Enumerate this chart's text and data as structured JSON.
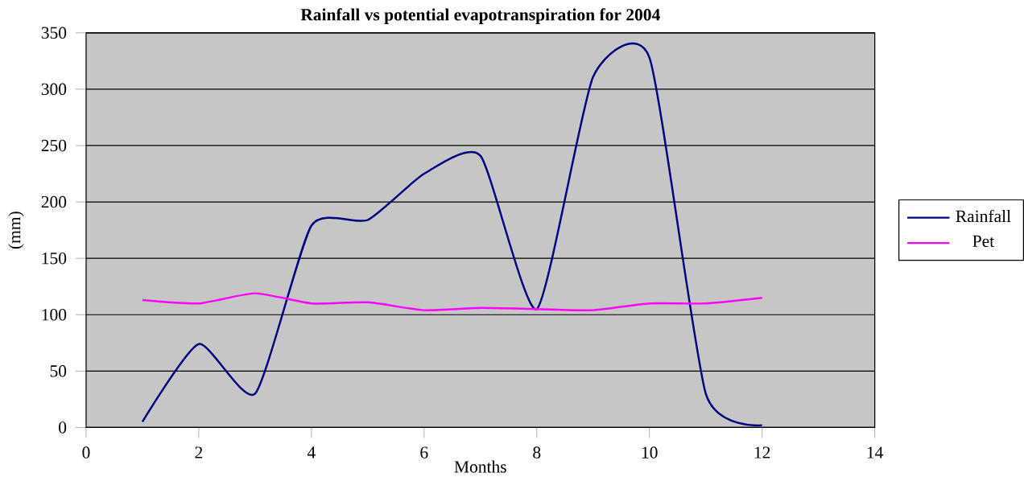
{
  "chart_data": {
    "type": "line",
    "title": "Rainfall vs potential evapotranspiration for 2004",
    "xlabel": "Months",
    "ylabel": "(mm)",
    "x": [
      1,
      2,
      3,
      4,
      5,
      6,
      7,
      8,
      9,
      10,
      11,
      12
    ],
    "series": [
      {
        "name": "Rainfall",
        "color": "#000080",
        "values": [
          5,
          74,
          30,
          179,
          184,
          225,
          241,
          105,
          311,
          328,
          30,
          2
        ]
      },
      {
        "name": "Pet",
        "color": "#ff00ff",
        "values": [
          113,
          110,
          119,
          110,
          111,
          104,
          106,
          105,
          104,
          110,
          110,
          115
        ]
      }
    ],
    "xlim": [
      0,
      14
    ],
    "xticks": [
      0,
      2,
      4,
      6,
      8,
      10,
      12,
      14
    ],
    "ylim": [
      0,
      350
    ],
    "yticks": [
      0,
      50,
      100,
      150,
      200,
      250,
      300,
      350
    ],
    "grid": "y",
    "legend": "right",
    "marker": "none",
    "line_style": "solid"
  }
}
